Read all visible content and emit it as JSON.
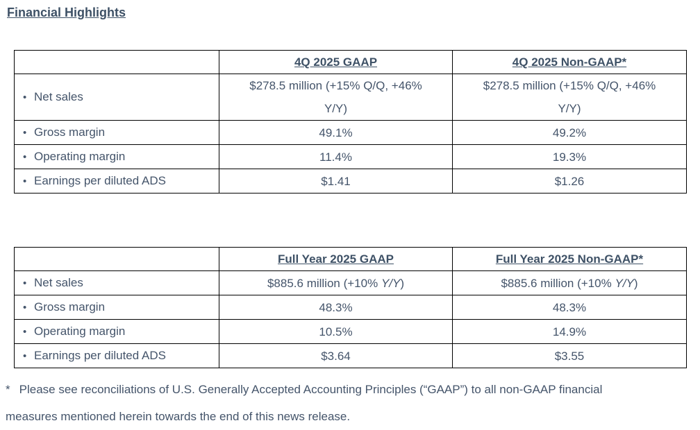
{
  "title": "Financial Highlights",
  "bullet": "•",
  "colors": {
    "text": "#44546A",
    "heading": "#3E5166",
    "table_border": "#000000",
    "background": "#FFFFFF"
  },
  "tables": [
    {
      "id": "q4-2025",
      "col_headers": [
        "4Q 2025 GAAP",
        "4Q 2025 Non-GAAP*"
      ],
      "rows": [
        {
          "label": "Net sales",
          "gaap": "$278.5 million (+15% Q/Q, +46% Y/Y)",
          "non_gaap": "$278.5 million (+15% Q/Q, +46% Y/Y)"
        },
        {
          "label": "Gross margin",
          "gaap": "49.1%",
          "non_gaap": "49.2%"
        },
        {
          "label": "Operating margin",
          "gaap": "11.4%",
          "non_gaap": "19.3%"
        },
        {
          "label": "Earnings per diluted ADS",
          "gaap": "$1.41",
          "non_gaap": "$1.26"
        }
      ]
    },
    {
      "id": "full-year-2025",
      "col_headers": [
        "Full Year 2025 GAAP",
        "Full Year 2025 Non-GAAP*"
      ],
      "rows": [
        {
          "label": "Net sales",
          "gaap_parts": [
            "$885.6 million (+10% ",
            "Y/Y",
            ")"
          ],
          "non_gaap_parts": [
            "$885.6 million (+10% ",
            "Y/Y",
            ")"
          ]
        },
        {
          "label": "Gross margin",
          "gaap": "48.3%",
          "non_gaap": "48.3%"
        },
        {
          "label": "Operating margin",
          "gaap": "10.5%",
          "non_gaap": "14.9%"
        },
        {
          "label": "Earnings per diluted ADS",
          "gaap": "$3.64",
          "non_gaap": "$3.55"
        }
      ]
    }
  ],
  "footnote": {
    "marker": "*",
    "text": "Please see reconciliations of U.S. Generally Accepted Accounting Principles (“GAAP”) to all non-GAAP financial measures mentioned herein towards the end of this news release."
  }
}
